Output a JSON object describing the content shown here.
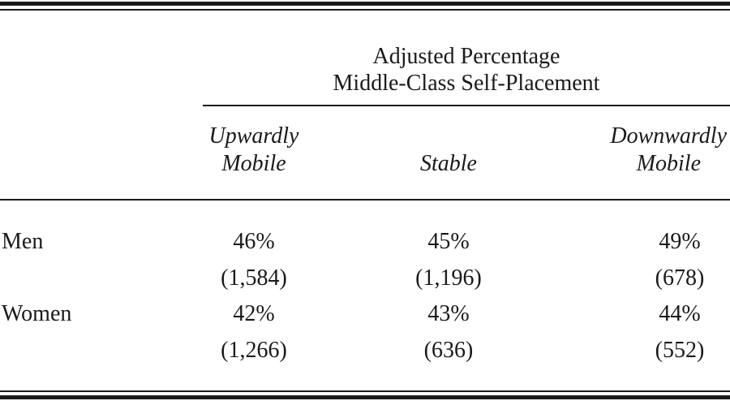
{
  "table": {
    "spanner": [
      "Adjusted Percentage",
      "Middle-Class Self-Placement"
    ],
    "columns": [
      [
        "Upwardly",
        "Mobile"
      ],
      [
        "Stable"
      ],
      [
        "Downwardly",
        "Mobile"
      ]
    ],
    "rows": [
      {
        "label": "Men",
        "percents": [
          "46%",
          "45%",
          "49%"
        ],
        "counts": [
          "(1,584)",
          "(1,196)",
          "(678)"
        ]
      },
      {
        "label": "Women",
        "percents": [
          "42%",
          "43%",
          "44%"
        ],
        "counts": [
          "(1,266)",
          "(636)",
          "(552)"
        ]
      }
    ]
  }
}
